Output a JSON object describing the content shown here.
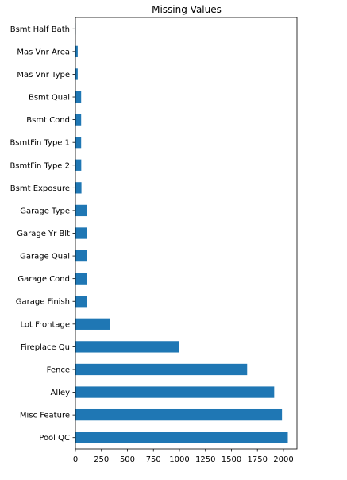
{
  "chart_data": {
    "type": "bar",
    "orientation": "horizontal",
    "title": "Missing Values",
    "xlabel": "",
    "ylabel": "",
    "categories": [
      "Bsmt Half Bath",
      "Mas Vnr Area",
      "Mas Vnr Type",
      "Bsmt Qual",
      "Bsmt Cond",
      "BsmtFin Type 1",
      "BsmtFin Type 2",
      "Bsmt Exposure",
      "Garage Type",
      "Garage Yr Blt",
      "Garage Qual",
      "Garage Cond",
      "Garage Finish",
      "Lot Frontage",
      "Fireplace Qu",
      "Fence",
      "Alley",
      "Misc Feature",
      "Pool QC"
    ],
    "values": [
      2,
      22,
      22,
      55,
      55,
      55,
      56,
      58,
      113,
      114,
      114,
      114,
      114,
      330,
      1000,
      1651,
      1911,
      1986,
      2042
    ],
    "xlim": [
      0,
      2130
    ],
    "xticks": [
      0,
      250,
      500,
      750,
      1000,
      1250,
      1500,
      1750,
      2000
    ],
    "bar_color": "#1f77b4",
    "grid": false,
    "legend": "none"
  }
}
